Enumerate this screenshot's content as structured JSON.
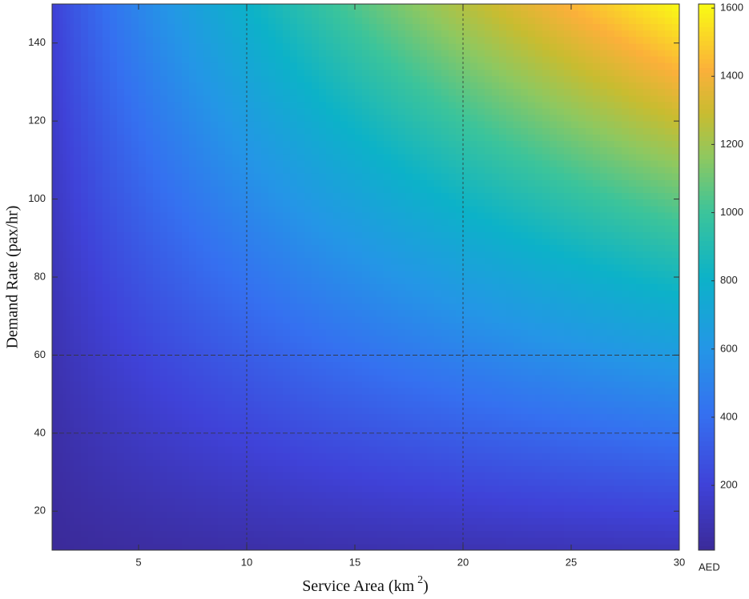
{
  "chart_data": {
    "type": "contour",
    "colormap": "parula",
    "x": [
      1,
      2,
      4,
      6,
      8,
      10,
      12,
      14,
      16,
      18,
      20,
      22,
      24,
      26,
      28,
      30
    ],
    "y": [
      10,
      20,
      30,
      40,
      50,
      60,
      70,
      80,
      90,
      100,
      110,
      120,
      130,
      140,
      150
    ],
    "z": [
      [
        13,
        20,
        30,
        39,
        47,
        54,
        60,
        67,
        72,
        78,
        83,
        88,
        93,
        98,
        103,
        107
      ],
      [
        25,
        39,
        60,
        78,
        93,
        108,
        121,
        133,
        145,
        156,
        166,
        177,
        187,
        196,
        206,
        215
      ],
      [
        38,
        59,
        91,
        117,
        140,
        161,
        181,
        200,
        217,
        233,
        250,
        265,
        280,
        294,
        308,
        322
      ],
      [
        50,
        78,
        121,
        156,
        187,
        215,
        241,
        266,
        289,
        311,
        333,
        353,
        373,
        392,
        411,
        430
      ],
      [
        63,
        98,
        151,
        195,
        234,
        269,
        302,
        333,
        362,
        389,
        416,
        442,
        467,
        491,
        514,
        537
      ],
      [
        76,
        117,
        181,
        234,
        280,
        323,
        362,
        399,
        434,
        467,
        499,
        530,
        560,
        589,
        617,
        644
      ],
      [
        88,
        137,
        211,
        273,
        327,
        377,
        422,
        466,
        506,
        545,
        582,
        618,
        653,
        687,
        720,
        752
      ],
      [
        101,
        156,
        242,
        312,
        374,
        430,
        482,
        532,
        578,
        622,
        666,
        706,
        746,
        785,
        822,
        859
      ],
      [
        113,
        176,
        272,
        351,
        420,
        484,
        543,
        599,
        651,
        700,
        749,
        795,
        840,
        883,
        925,
        967
      ],
      [
        126,
        195,
        302,
        390,
        467,
        538,
        603,
        665,
        723,
        778,
        832,
        883,
        933,
        981,
        1028,
        1074
      ],
      [
        139,
        215,
        332,
        429,
        514,
        592,
        663,
        732,
        795,
        856,
        915,
        971,
        1026,
        1079,
        1131,
        1181
      ],
      [
        151,
        234,
        362,
        468,
        560,
        646,
        724,
        798,
        868,
        934,
        998,
        1060,
        1120,
        1177,
        1234,
        1289
      ],
      [
        164,
        254,
        393,
        507,
        607,
        699,
        784,
        865,
        940,
        1011,
        1082,
        1148,
        1213,
        1275,
        1336,
        1396
      ],
      [
        176,
        273,
        423,
        546,
        654,
        753,
        844,
        931,
        1012,
        1089,
        1165,
        1236,
        1306,
        1373,
        1439,
        1504
      ],
      [
        189,
        293,
        453,
        585,
        701,
        807,
        905,
        998,
        1085,
        1167,
        1248,
        1325,
        1400,
        1472,
        1542,
        1611
      ]
    ],
    "xlim": [
      1,
      30
    ],
    "xticks": [
      5,
      10,
      15,
      20,
      25,
      30
    ],
    "ylim": [
      10,
      150
    ],
    "yticks": [
      20,
      40,
      60,
      80,
      100,
      120,
      140
    ],
    "xgrid": [
      10,
      20
    ],
    "ygrid": [
      40,
      60
    ],
    "clim": [
      10,
      1612
    ],
    "cticks": [
      200,
      400,
      600,
      800,
      1000,
      1200,
      1400,
      1600
    ],
    "xlabel": "Service Area (km",
    "xlabel_sup": "2",
    "xlabel_end": ")",
    "ylabel": "Demand Rate (pax/hr)",
    "colorbar_label": "AED"
  }
}
